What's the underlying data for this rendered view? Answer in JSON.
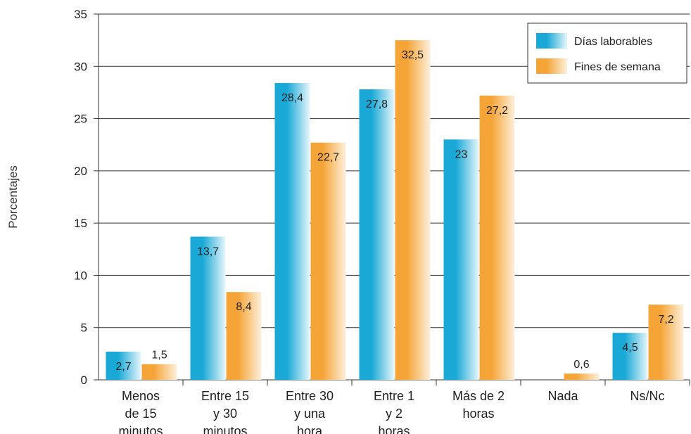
{
  "chart_data": {
    "type": "bar",
    "ylabel": "Porcentajes",
    "xlabel": "",
    "ylim": [
      0,
      35
    ],
    "yticks": [
      0,
      5,
      10,
      15,
      20,
      25,
      30,
      35
    ],
    "grid": true,
    "legend_position": "top-right",
    "categories": [
      [
        "Menos",
        "de 15",
        "minutos"
      ],
      [
        "Entre 15",
        "y 30",
        "minutos"
      ],
      [
        "Entre 30",
        "y una",
        "hora"
      ],
      [
        "Entre 1",
        "y 2",
        "horas"
      ],
      [
        "Más de 2",
        "horas"
      ],
      [
        "Nada"
      ],
      [
        "Ns/Nc"
      ]
    ],
    "series": [
      {
        "name": "Días laborables",
        "values": [
          2.7,
          13.7,
          28.4,
          27.8,
          23,
          null,
          4.5
        ],
        "labels": [
          "2,7",
          "13,7",
          "28,4",
          "27,8",
          "23",
          "",
          "4,5"
        ],
        "color_main": "#1aa9d6",
        "color_light": "#e6f6fc"
      },
      {
        "name": "Fines de semana",
        "values": [
          1.5,
          8.4,
          22.7,
          32.5,
          27.2,
          0.6,
          7.2
        ],
        "labels": [
          "1,5",
          "8,4",
          "22,7",
          "32,5",
          "27,2",
          "0,6",
          "7,2"
        ],
        "color_main": "#f5a538",
        "color_light": "#fdf0dc"
      }
    ]
  }
}
